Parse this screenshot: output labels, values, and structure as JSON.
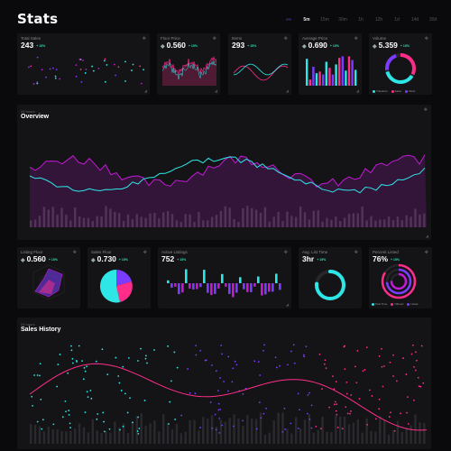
{
  "header": {
    "title": "Stats",
    "tabs": [
      "5m",
      "15m",
      "30m",
      "1h",
      "12h",
      "1d",
      "14d",
      "30d"
    ],
    "active_tab": "5m",
    "chart_icon": "chart-line-icon"
  },
  "cards_top": [
    {
      "label": "Total Sales",
      "value": "243",
      "change": "+ 15%"
    },
    {
      "label": "Floor Price",
      "value": "0.560",
      "change": "+ 15%"
    },
    {
      "label": "Items",
      "value": "293",
      "change": "+ 15%"
    },
    {
      "label": "Average Price",
      "value": "0.690",
      "change": "+ 15%"
    },
    {
      "label": "Volume",
      "value": "5.359",
      "change": "+ 15%"
    }
  ],
  "volume_legend": [
    "Transfers",
    "Sales",
    "Mints"
  ],
  "overview": {
    "sublabel": "24 hours",
    "title": "Overview"
  },
  "cards_mid": [
    {
      "label": "Listing Floor",
      "value": "0.560",
      "change": "+ 15%"
    },
    {
      "label": "Sales Floor",
      "value": "0.730",
      "change": "+ 15%"
    },
    {
      "label": "Active Listings",
      "value": "752",
      "change": "+ 15%"
    },
    {
      "label": "Avg. List Time",
      "value": "3hr",
      "change": "+ 15%"
    },
    {
      "label": "Percent Listed",
      "value": "76%",
      "change": "+ 15%"
    }
  ],
  "percent_legend": [
    "Post Time",
    "Offered",
    "Listed"
  ],
  "sales_history": {
    "sublabel": "24 hours",
    "title": "Sales History"
  },
  "colors": {
    "cyan": "#2ee6e6",
    "pink": "#ff2d8a",
    "purple": "#7b3cff",
    "magenta": "#c31ad6",
    "bg": "#0a0a0c",
    "card": "#141416",
    "green": "#2de0b8"
  }
}
